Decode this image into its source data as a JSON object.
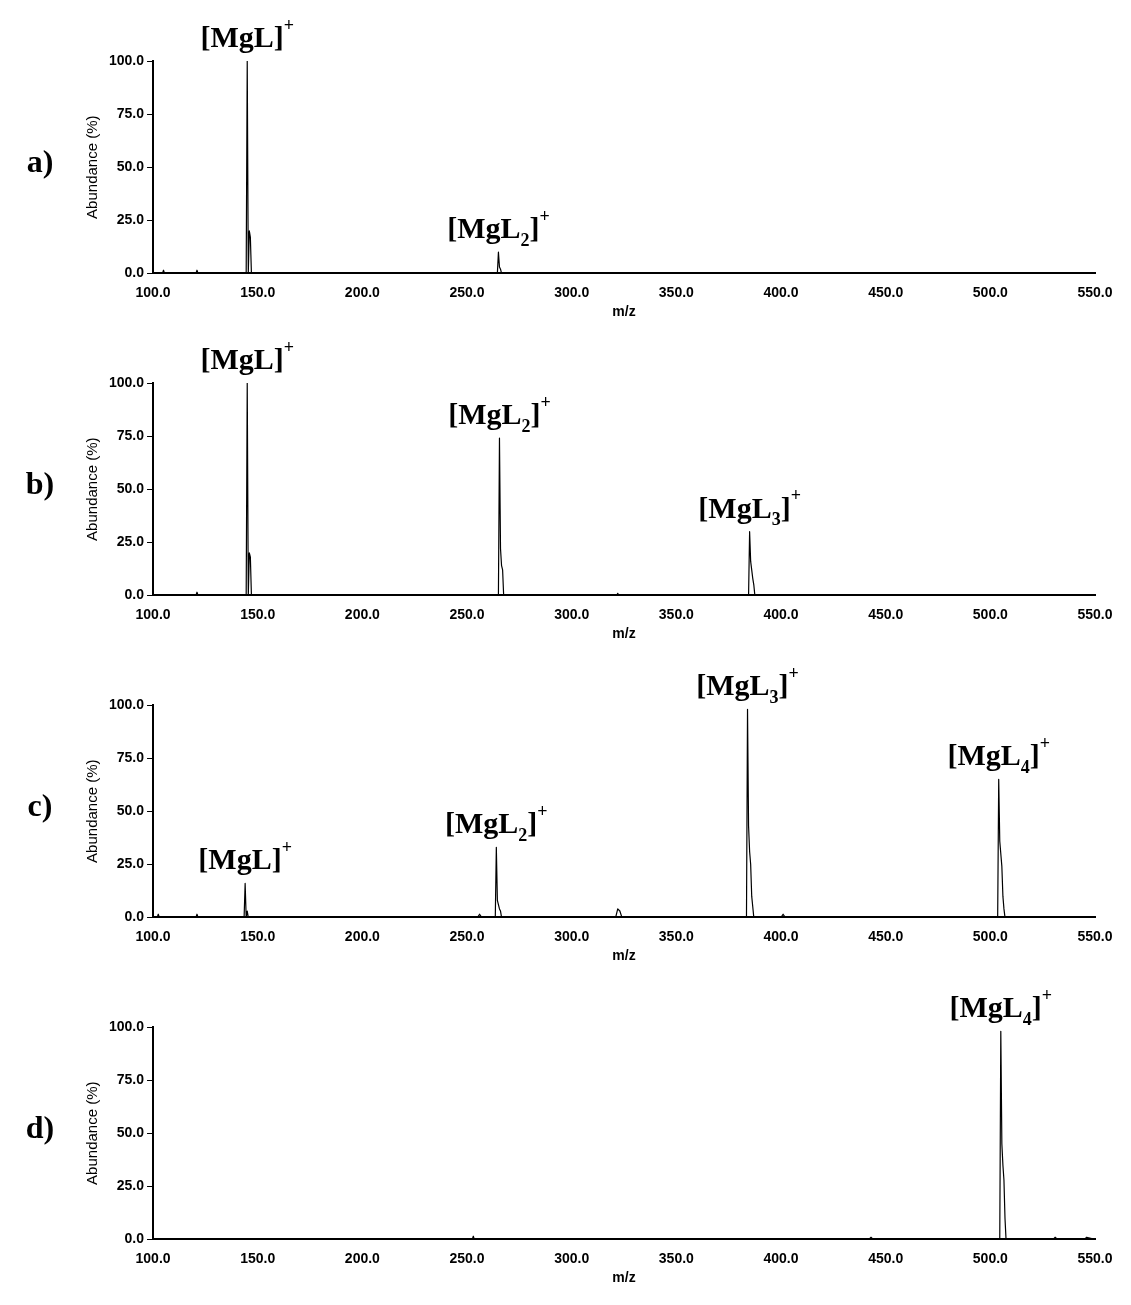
{
  "chart_data": [
    {
      "type": "line",
      "title": "a)",
      "xlabel": "m/z",
      "ylabel": "Abundance (%)",
      "grid": false,
      "legend": false,
      "marker": "none",
      "line_style": "solid",
      "xlim": [
        100,
        550
      ],
      "ylim": [
        0,
        100
      ],
      "xticks": [
        {
          "value": 100,
          "label": "100.0"
        },
        {
          "value": 150,
          "label": "150.0"
        },
        {
          "value": 200,
          "label": "200.0"
        },
        {
          "value": 250,
          "label": "250.0"
        },
        {
          "value": 300,
          "label": "300.0"
        },
        {
          "value": 350,
          "label": "350.0"
        },
        {
          "value": 400,
          "label": "400.0"
        },
        {
          "value": 450,
          "label": "450.0"
        },
        {
          "value": 500,
          "label": "500.0"
        },
        {
          "value": 550,
          "label": "550.0"
        }
      ],
      "yticks": [
        {
          "value": 0,
          "label": "0.0"
        },
        {
          "value": 25,
          "label": "25.0"
        },
        {
          "value": 50,
          "label": "50.0"
        },
        {
          "value": 75,
          "label": "75.0"
        },
        {
          "value": 100,
          "label": "100.0"
        }
      ],
      "series": [
        {
          "color": "#000000",
          "x": [
            100,
            104.5,
            105,
            105.5,
            120.5,
            121,
            121.5,
            144.5,
            145,
            145.5,
            146,
            146.5,
            147,
            264.5,
            265,
            265.5,
            266,
            266.5,
            550
          ],
          "values": [
            0,
            0,
            1.5,
            0,
            0,
            1.5,
            0,
            0,
            100,
            0,
            20,
            17,
            0,
            0,
            10,
            3,
            2,
            0,
            0
          ]
        }
      ],
      "annotations": [
        {
          "text": "[MgL]$^{+}$",
          "x": 145,
          "y": 100
        },
        {
          "text": "[MgL$_{2}$]$^{+}$",
          "x": 265,
          "y": 10
        }
      ]
    },
    {
      "type": "line",
      "title": "b)",
      "xlabel": "m/z",
      "ylabel": "Abundance (%)",
      "grid": false,
      "legend": false,
      "marker": "none",
      "line_style": "solid",
      "xlim": [
        100,
        550
      ],
      "ylim": [
        0,
        100
      ],
      "xticks": [
        {
          "value": 100,
          "label": "100.0"
        },
        {
          "value": 150,
          "label": "150.0"
        },
        {
          "value": 200,
          "label": "200.0"
        },
        {
          "value": 250,
          "label": "250.0"
        },
        {
          "value": 300,
          "label": "300.0"
        },
        {
          "value": 350,
          "label": "350.0"
        },
        {
          "value": 400,
          "label": "400.0"
        },
        {
          "value": 450,
          "label": "450.0"
        },
        {
          "value": 500,
          "label": "500.0"
        },
        {
          "value": 550,
          "label": "550.0"
        }
      ],
      "yticks": [
        {
          "value": 0,
          "label": "0.0"
        },
        {
          "value": 25,
          "label": "25.0"
        },
        {
          "value": 50,
          "label": "50.0"
        },
        {
          "value": 75,
          "label": "75.0"
        },
        {
          "value": 100,
          "label": "100.0"
        }
      ],
      "series": [
        {
          "color": "#000000",
          "x": [
            100,
            120.5,
            121,
            121.5,
            144.5,
            145,
            145.5,
            146,
            146.5,
            147,
            265,
            265.5,
            266,
            266.5,
            267,
            267.5,
            321.5,
            322,
            322.5,
            384.5,
            385,
            385.5,
            386,
            386.5,
            387,
            387.5,
            550
          ],
          "values": [
            0,
            0,
            1.5,
            0,
            0,
            100,
            0,
            20,
            18,
            0,
            0,
            74,
            22,
            14,
            12,
            0,
            0,
            1,
            0,
            0,
            30,
            16,
            12,
            8,
            5,
            0,
            0
          ]
        }
      ],
      "annotations": [
        {
          "text": "[MgL]$^{+}$",
          "x": 145,
          "y": 100
        },
        {
          "text": "[MgL$_{2}$]$^{+}$",
          "x": 265.5,
          "y": 74
        },
        {
          "text": "[MgL$_{3}$]$^{+}$",
          "x": 385,
          "y": 30
        }
      ]
    },
    {
      "type": "line",
      "title": "c)",
      "xlabel": "m/z",
      "ylabel": "Abundance (%)",
      "grid": false,
      "legend": false,
      "marker": "none",
      "line_style": "solid",
      "xlim": [
        100,
        550
      ],
      "ylim": [
        0,
        100
      ],
      "xticks": [
        {
          "value": 100,
          "label": "100.0"
        },
        {
          "value": 150,
          "label": "150.0"
        },
        {
          "value": 200,
          "label": "200.0"
        },
        {
          "value": 250,
          "label": "250.0"
        },
        {
          "value": 300,
          "label": "300.0"
        },
        {
          "value": 350,
          "label": "350.0"
        },
        {
          "value": 400,
          "label": "400.0"
        },
        {
          "value": 450,
          "label": "450.0"
        },
        {
          "value": 500,
          "label": "500.0"
        },
        {
          "value": 550,
          "label": "550.0"
        }
      ],
      "yticks": [
        {
          "value": 0,
          "label": "0.0"
        },
        {
          "value": 25,
          "label": "25.0"
        },
        {
          "value": 50,
          "label": "50.0"
        },
        {
          "value": 75,
          "label": "75.0"
        },
        {
          "value": 100,
          "label": "100.0"
        }
      ],
      "series": [
        {
          "color": "#000000",
          "x": [
            100,
            102,
            102.5,
            103,
            120.5,
            121,
            121.5,
            143.5,
            144,
            144.5,
            145,
            145.5,
            255,
            256,
            257,
            263.5,
            264,
            264.5,
            265,
            265.5,
            266,
            266.5,
            321,
            322,
            323,
            324,
            383.5,
            384,
            384.5,
            385,
            385.5,
            386,
            386.5,
            387,
            400,
            401,
            402,
            503.5,
            504,
            504.5,
            505,
            505.5,
            506,
            506.5,
            507,
            550
          ],
          "values": [
            0,
            0,
            1.5,
            0,
            0,
            1.5,
            0,
            0,
            16,
            0,
            3,
            0,
            0,
            1.5,
            0,
            0,
            33,
            8,
            6,
            4,
            3,
            0,
            0,
            4,
            3,
            0,
            0,
            98,
            43,
            31,
            25,
            10,
            5,
            0,
            0,
            1.5,
            0,
            0,
            65,
            36,
            30,
            24,
            10,
            4,
            0,
            0
          ]
        }
      ],
      "annotations": [
        {
          "text": "[MgL]$^{+}$",
          "x": 144,
          "y": 16
        },
        {
          "text": "[MgL$_{2}$]$^{+}$",
          "x": 264,
          "y": 33
        },
        {
          "text": "[MgL$_{3}$]$^{+}$",
          "x": 384,
          "y": 98
        },
        {
          "text": "[MgL$_{4}$]$^{+}$",
          "x": 504,
          "y": 65
        }
      ]
    },
    {
      "type": "line",
      "title": "d)",
      "xlabel": "m/z",
      "ylabel": "Abundance (%)",
      "grid": false,
      "legend": false,
      "marker": "none",
      "line_style": "solid",
      "xlim": [
        100,
        550
      ],
      "ylim": [
        0,
        100
      ],
      "xticks": [
        {
          "value": 100,
          "label": "100.0"
        },
        {
          "value": 150,
          "label": "150.0"
        },
        {
          "value": 200,
          "label": "200.0"
        },
        {
          "value": 250,
          "label": "250.0"
        },
        {
          "value": 300,
          "label": "300.0"
        },
        {
          "value": 350,
          "label": "350.0"
        },
        {
          "value": 400,
          "label": "400.0"
        },
        {
          "value": 450,
          "label": "450.0"
        },
        {
          "value": 500,
          "label": "500.0"
        },
        {
          "value": 550,
          "label": "550.0"
        }
      ],
      "yticks": [
        {
          "value": 0,
          "label": "0.0"
        },
        {
          "value": 25,
          "label": "25.0"
        },
        {
          "value": 50,
          "label": "50.0"
        },
        {
          "value": 75,
          "label": "75.0"
        },
        {
          "value": 100,
          "label": "100.0"
        }
      ],
      "series": [
        {
          "color": "#000000",
          "x": [
            100,
            252.5,
            253,
            253.5,
            442,
            443,
            444,
            504.5,
            505,
            505.5,
            506,
            506.5,
            507,
            507.5,
            530,
            531,
            532,
            545,
            546,
            550
          ],
          "values": [
            0,
            0,
            1.5,
            0,
            0,
            1,
            0,
            0,
            98,
            45,
            35,
            28,
            10,
            0,
            0,
            1,
            0,
            0,
            1,
            0
          ]
        }
      ],
      "annotations": [
        {
          "text": "[MgL$_{4}$]$^{+}$",
          "x": 505,
          "y": 98
        }
      ]
    }
  ]
}
